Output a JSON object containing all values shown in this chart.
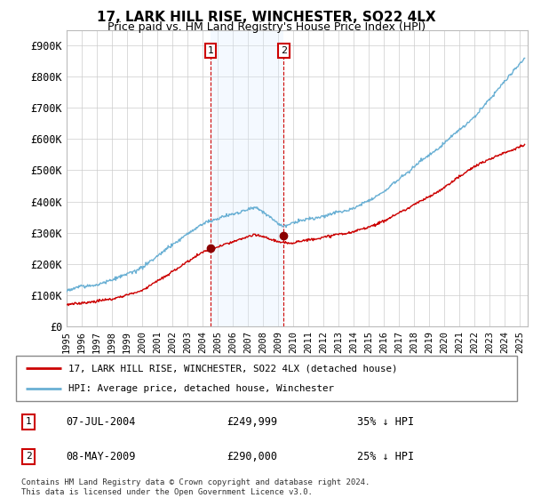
{
  "title": "17, LARK HILL RISE, WINCHESTER, SO22 4LX",
  "subtitle": "Price paid vs. HM Land Registry's House Price Index (HPI)",
  "legend_line1": "17, LARK HILL RISE, WINCHESTER, SO22 4LX (detached house)",
  "legend_line2": "HPI: Average price, detached house, Winchester",
  "annotation1_date": "07-JUL-2004",
  "annotation1_price": "£249,999",
  "annotation1_hpi": "35% ↓ HPI",
  "annotation2_date": "08-MAY-2009",
  "annotation2_price": "£290,000",
  "annotation2_hpi": "25% ↓ HPI",
  "footer": "Contains HM Land Registry data © Crown copyright and database right 2024.\nThis data is licensed under the Open Government Licence v3.0.",
  "hpi_color": "#6ab0d4",
  "price_color": "#cc0000",
  "shade_color": "#ddeeff",
  "annotation_box_color": "#cc0000",
  "ylim_min": 0,
  "ylim_max": 950000,
  "yticks": [
    0,
    100000,
    200000,
    300000,
    400000,
    500000,
    600000,
    700000,
    800000,
    900000
  ],
  "ytick_labels": [
    "£0",
    "£100K",
    "£200K",
    "£300K",
    "£400K",
    "£500K",
    "£600K",
    "£700K",
    "£800K",
    "£900K"
  ],
  "sale1_x": 2004.52,
  "sale1_y": 249999,
  "sale2_x": 2009.36,
  "sale2_y": 290000,
  "xmin": 1995.0,
  "xmax": 2025.5,
  "hpi_seed": 12,
  "price_seed": 7
}
